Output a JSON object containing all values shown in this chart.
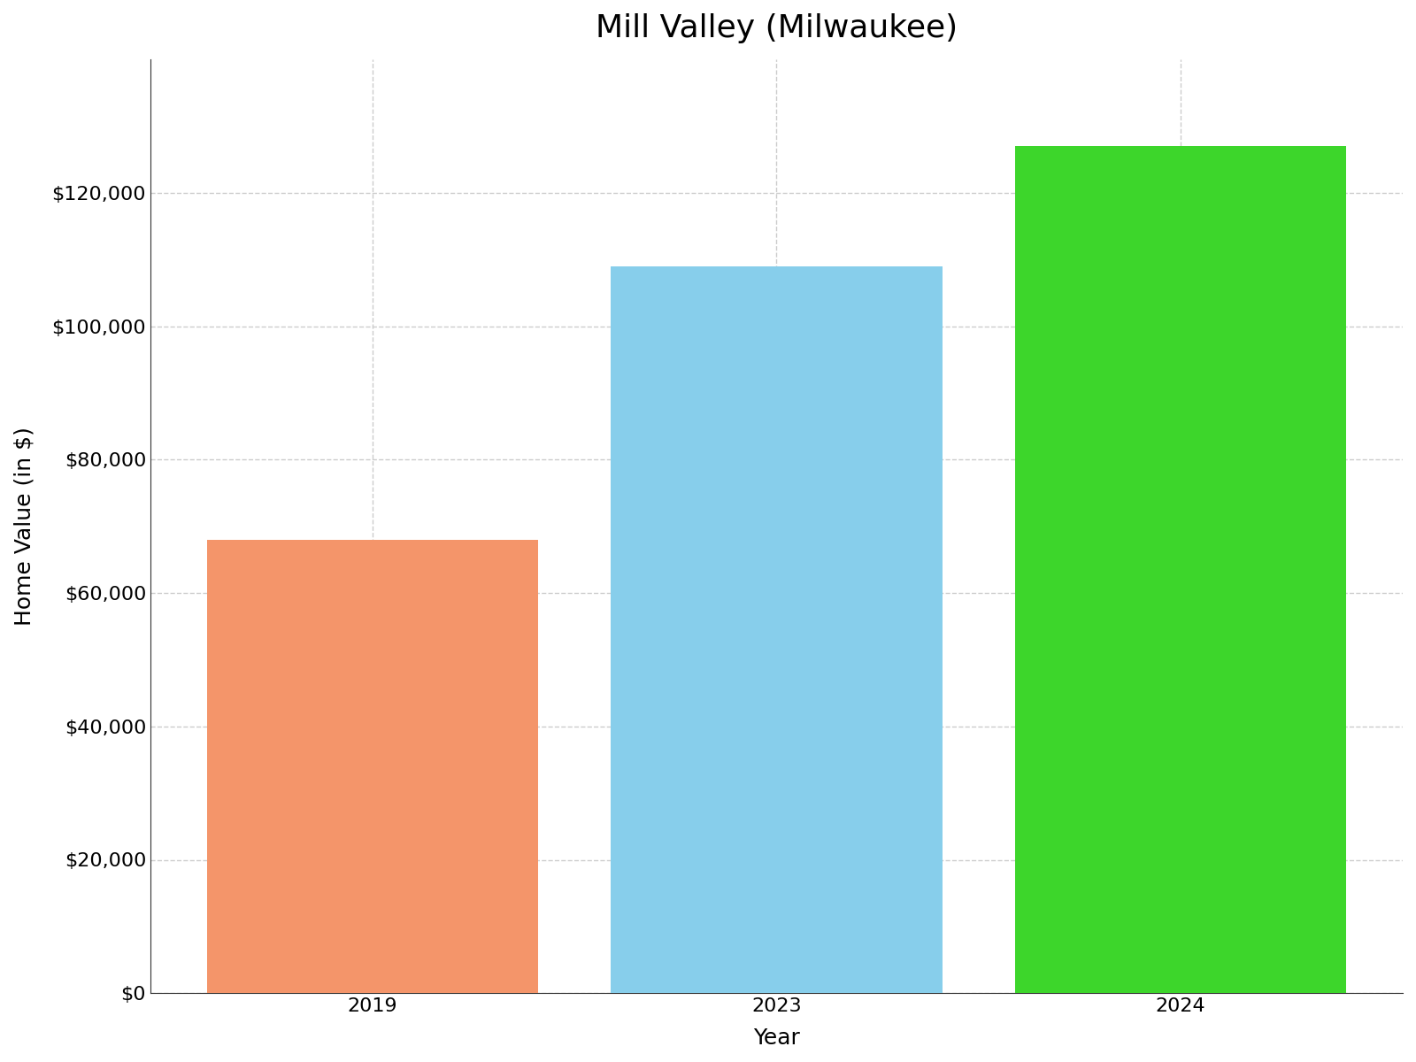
{
  "title": "Mill Valley (Milwaukee)",
  "categories": [
    "2019",
    "2023",
    "2024"
  ],
  "values": [
    68000,
    109000,
    127000
  ],
  "bar_colors": [
    "#F4956A",
    "#87CEEB",
    "#3DD62B"
  ],
  "xlabel": "Year",
  "ylabel": "Home Value (in $)",
  "ylim": [
    0,
    140000
  ],
  "yticks": [
    0,
    20000,
    40000,
    60000,
    80000,
    100000,
    120000
  ],
  "title_fontsize": 26,
  "axis_label_fontsize": 18,
  "tick_fontsize": 16,
  "background_color": "#ffffff",
  "grid_color": "#cccccc",
  "bar_width": 0.82
}
